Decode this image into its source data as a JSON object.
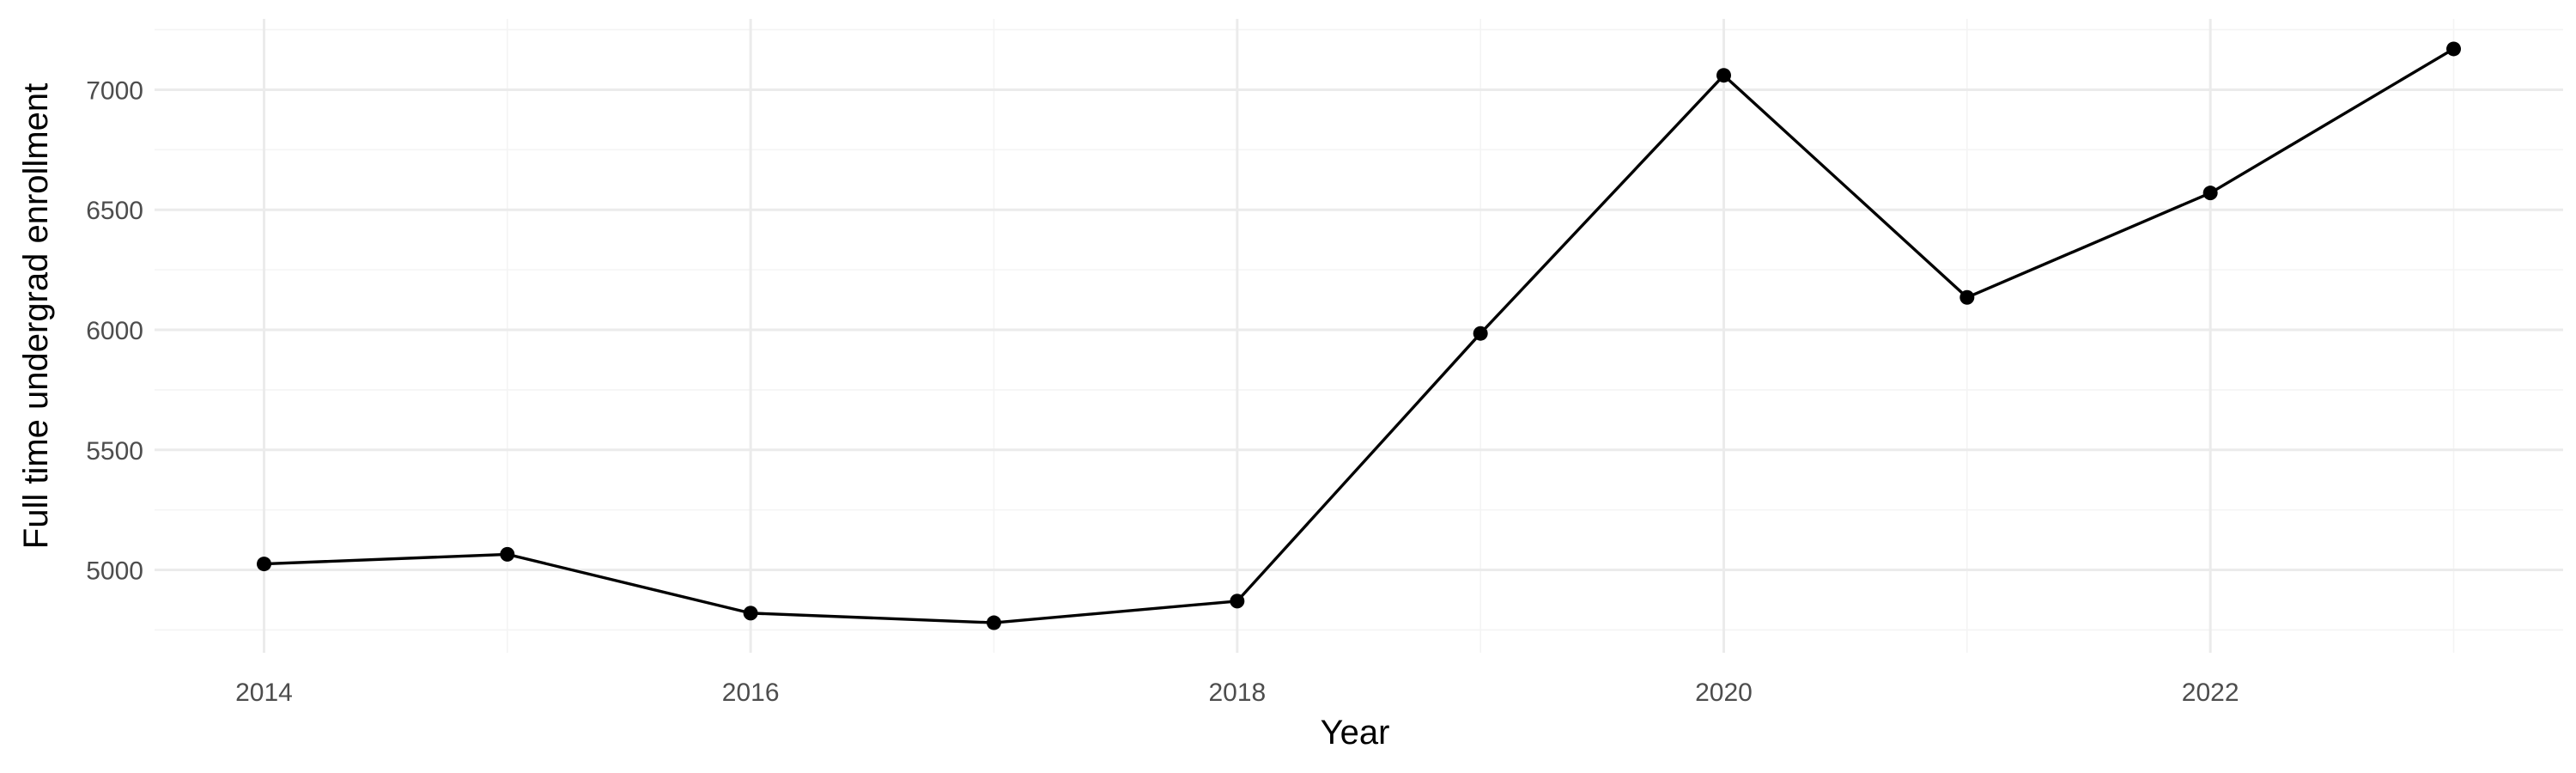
{
  "chart_data": {
    "type": "line",
    "title": "",
    "xlabel": "Year",
    "ylabel": "Full time undergrad enrollment",
    "x": [
      2014,
      2015,
      2016,
      2017,
      2018,
      2019,
      2020,
      2021,
      2022,
      2023
    ],
    "series": [
      {
        "values": [
          5025,
          5065,
          4820,
          4780,
          4870,
          5985,
          7060,
          6135,
          6570,
          7170
        ]
      }
    ],
    "xlim": [
      2013.55,
      2023.45
    ],
    "ylim": [
      4655,
      7295
    ],
    "x_major_ticks": [
      2014,
      2016,
      2018,
      2020,
      2022
    ],
    "x_minor_ticks": [
      2015,
      2017,
      2019,
      2021,
      2023
    ],
    "y_major_ticks": [
      5000,
      5500,
      6000,
      6500,
      7000
    ],
    "y_minor_ticks": [
      4750,
      5250,
      5750,
      6250,
      6750,
      7250
    ],
    "x_tick_labels": [
      "2014",
      "2016",
      "2018",
      "2020",
      "2022"
    ],
    "y_tick_labels": [
      "5000",
      "5500",
      "6000",
      "6500",
      "7000"
    ],
    "grid": true,
    "legend": "none",
    "colors": {
      "line": "#000000",
      "points": "#000000",
      "grid_major": "#ebebeb",
      "grid_minor": "#f4f4f4",
      "tick_text": "#4d4d4d",
      "axis_title": "#000000"
    }
  }
}
